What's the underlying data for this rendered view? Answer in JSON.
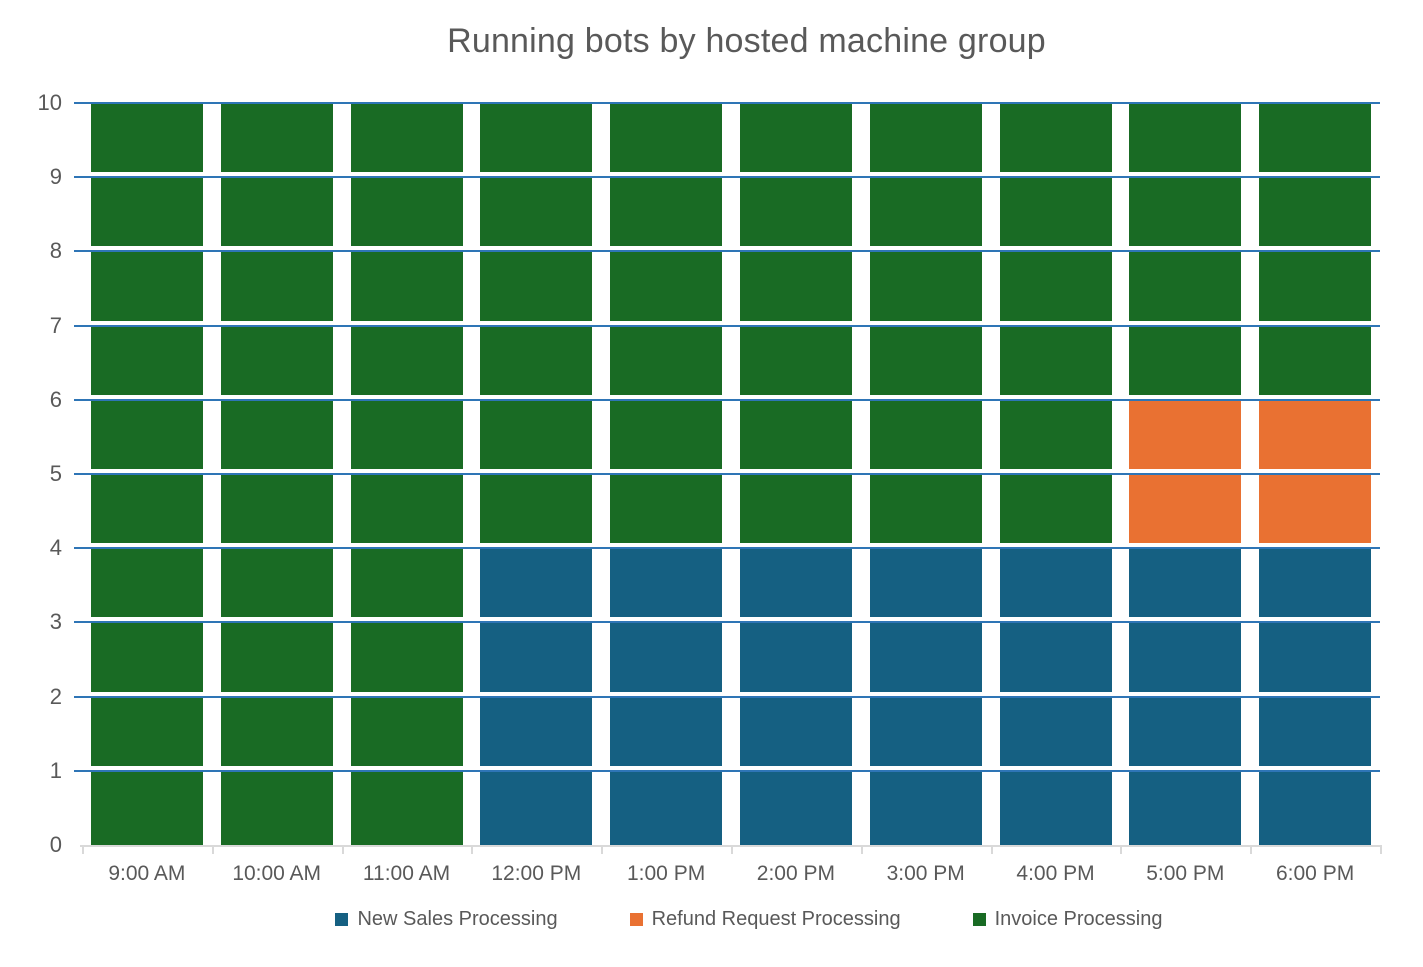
{
  "chart_data": {
    "type": "bar",
    "stacked": true,
    "unit_blocks": true,
    "title": "Running bots by hosted machine group",
    "categories": [
      "9:00 AM",
      "10:00 AM",
      "11:00 AM",
      "12:00 PM",
      "1:00 PM",
      "2:00 PM",
      "3:00 PM",
      "4:00 PM",
      "5:00 PM",
      "6:00 PM"
    ],
    "series": [
      {
        "name": "New Sales Processing",
        "color": "#156082",
        "values": [
          0,
          0,
          0,
          4,
          4,
          4,
          4,
          4,
          4,
          4
        ]
      },
      {
        "name": "Refund Request Processing",
        "color": "#E97132",
        "values": [
          0,
          0,
          0,
          0,
          0,
          0,
          0,
          0,
          2,
          2
        ]
      },
      {
        "name": "Invoice Processing",
        "color": "#196B24",
        "values": [
          10,
          10,
          10,
          6,
          6,
          6,
          6,
          6,
          4,
          4
        ]
      }
    ],
    "xlabel": "",
    "ylabel": "",
    "ylim": [
      0,
      10
    ],
    "yticks": [
      0,
      1,
      2,
      3,
      4,
      5,
      6,
      7,
      8,
      9,
      10
    ],
    "grid": "horizontal",
    "legend_position": "bottom",
    "colors": {
      "gridline": "#2E75B6",
      "axis_line": "#D9D9D9",
      "text": "#595959",
      "background": "#FFFFFF"
    }
  }
}
